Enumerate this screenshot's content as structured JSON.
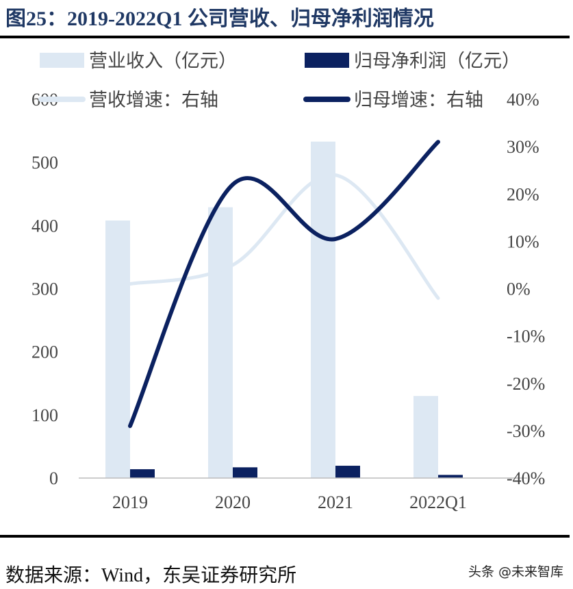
{
  "title": "图25：2019-2022Q1 公司营收、归母净利润情况",
  "source": "数据来源：Wind，东吴证券研究所",
  "watermark": "头条 @未来智库",
  "chart_data": {
    "type": "bar+line",
    "categories": [
      "2019",
      "2020",
      "2021",
      "2022Q1"
    ],
    "series": [
      {
        "name": "营业收入（亿元）",
        "kind": "bar",
        "axis": "left",
        "color": "#dde8f3",
        "values": [
          408,
          429,
          533,
          130
        ]
      },
      {
        "name": "归母净利润（亿元）",
        "kind": "bar",
        "axis": "left",
        "color": "#0b2160",
        "values": [
          14,
          17,
          19.5,
          5
        ]
      },
      {
        "name": "营收增速：右轴",
        "kind": "line",
        "axis": "right",
        "color": "#dde8f3",
        "values": [
          1,
          5,
          24,
          -2
        ]
      },
      {
        "name": "归母增速：右轴",
        "kind": "line",
        "axis": "right",
        "color": "#0b2160",
        "values": [
          -29,
          22,
          10.5,
          31
        ]
      }
    ],
    "left_axis": {
      "ylim": [
        0,
        600
      ],
      "ticks": [
        "0",
        "100",
        "200",
        "300",
        "400",
        "500",
        "600"
      ]
    },
    "right_axis": {
      "ylim": [
        -40,
        40
      ],
      "ticks": [
        "-40%",
        "-30%",
        "-20%",
        "-10%",
        "0%",
        "10%",
        "20%",
        "30%",
        "40%"
      ]
    },
    "grid": false,
    "legend": "top"
  }
}
